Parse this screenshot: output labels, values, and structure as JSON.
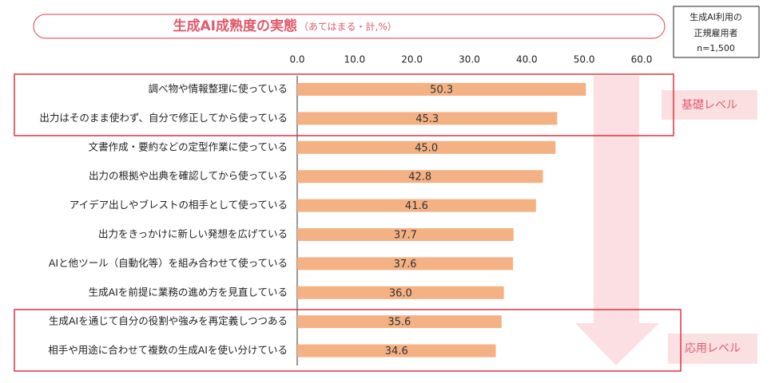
{
  "chart_data": {
    "type": "barh",
    "title": "生成AI成熟度の実態",
    "subtitle": "（あてはまる・計,%）",
    "note": [
      "生成AI利用の",
      "正規雇用者",
      "n=1,500"
    ],
    "categories": [
      "調べ物や情報整理に使っている",
      "出力はそのまま使わず、自分で修正してから使っている",
      "文書作成・要約などの定型作業に使っている",
      "出力の根拠や出典を確認してから使っている",
      "アイデア出しやブレストの相手として使っている",
      "出力をきっかけに新しい発想を広げている",
      "AIと他ツール（自動化等）を組み合わせて使っている",
      "生成AIを前提に業務の進め方を見直している",
      "生成AIを通じて自分の役割や強みを再定義しつつある",
      "相手や用途に合わせて複数の生成AIを使い分けている"
    ],
    "values": [
      50.3,
      45.3,
      45,
      42.8,
      41.6,
      37.7,
      37.6,
      36,
      35.6,
      34.6
    ],
    "value_labels": [
      "50.3",
      "45.3",
      "45.0",
      "42.8",
      "41.6",
      "37.7",
      "37.6",
      "36.0",
      "35.6",
      "34.6"
    ],
    "color": "#f4b183",
    "xlim": [
      0,
      60
    ],
    "xticks": [
      {
        "value": 0,
        "label": "0.0"
      },
      {
        "value": 10,
        "label": "10.0"
      },
      {
        "value": 20,
        "label": "20.0"
      },
      {
        "value": 30,
        "label": "30.0"
      },
      {
        "value": 40,
        "label": "40.0"
      },
      {
        "value": 50,
        "label": "50.0"
      },
      {
        "value": 60,
        "label": "60.0"
      }
    ],
    "levels": [
      "基礎レベル",
      "応用レベル"
    ]
  }
}
